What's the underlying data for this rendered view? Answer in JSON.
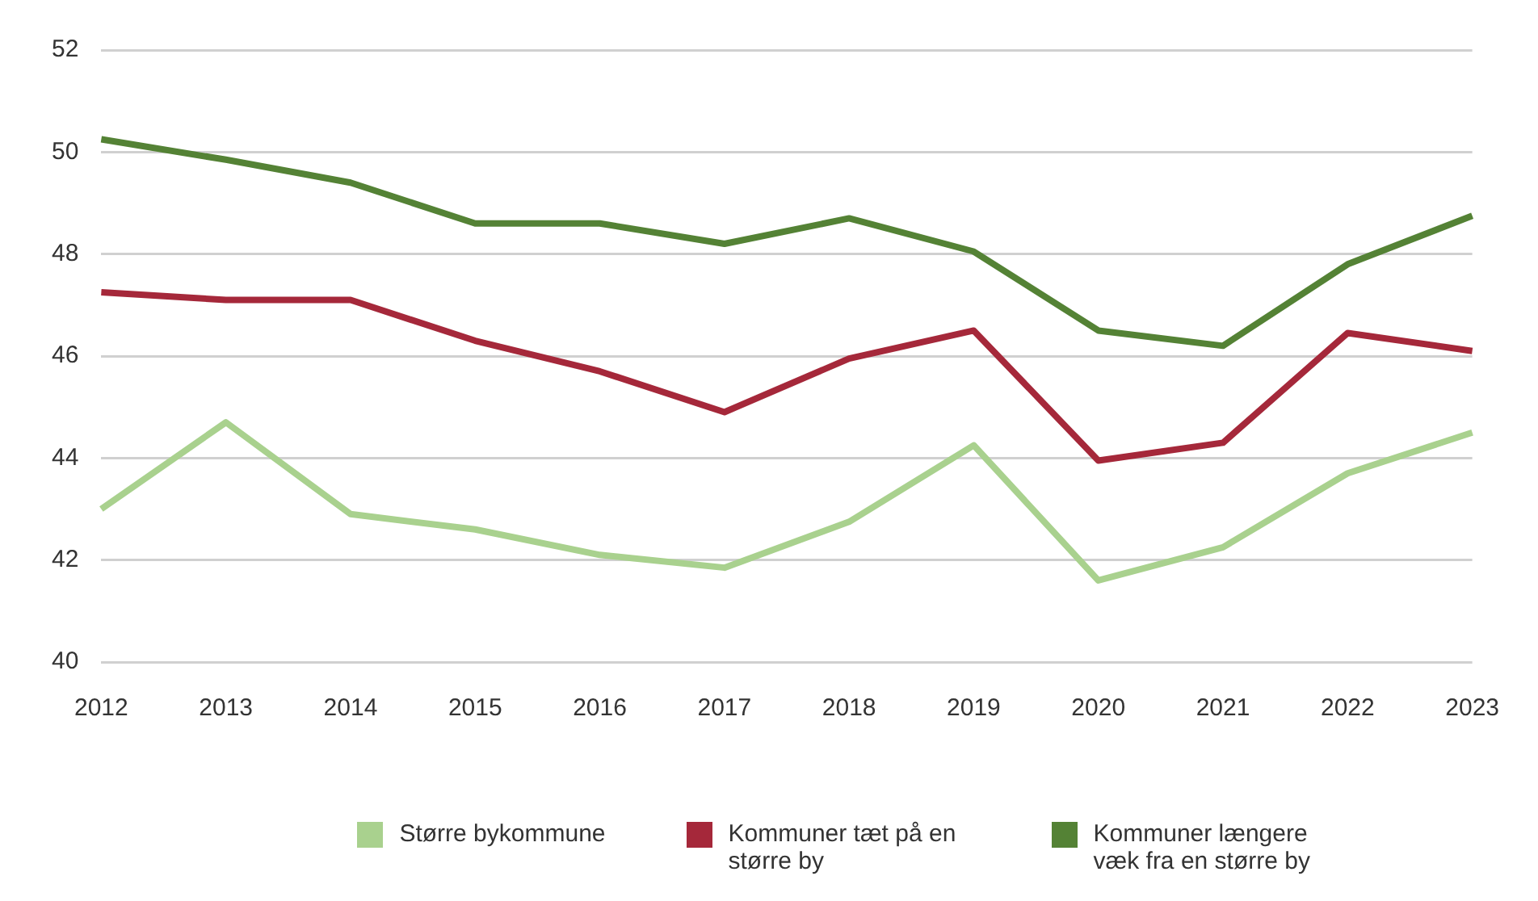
{
  "chart_data": {
    "type": "line",
    "categories": [
      "2012",
      "2013",
      "2014",
      "2015",
      "2016",
      "2017",
      "2018",
      "2019",
      "2020",
      "2021",
      "2022",
      "2023"
    ],
    "series": [
      {
        "name": "Større bykommune",
        "color": "#a9d18e",
        "values": [
          43.0,
          44.7,
          42.9,
          42.6,
          42.1,
          41.85,
          42.75,
          44.25,
          41.6,
          42.25,
          43.7,
          44.5
        ]
      },
      {
        "name": "Kommuner tæt på en større by",
        "color": "#a5283a",
        "values": [
          47.25,
          47.1,
          47.1,
          46.3,
          45.7,
          44.9,
          45.95,
          46.5,
          43.95,
          44.3,
          46.45,
          46.1
        ]
      },
      {
        "name": "Kommuner længere væk fra en større by",
        "color": "#548235",
        "values": [
          50.25,
          49.85,
          49.4,
          48.6,
          48.6,
          48.2,
          48.7,
          48.05,
          46.5,
          46.2,
          47.8,
          48.75
        ]
      }
    ],
    "ylim": [
      40,
      52
    ],
    "yticks": [
      40,
      42,
      44,
      46,
      48,
      50,
      52
    ],
    "grid": "y",
    "legend": "bottom",
    "marker": "none",
    "line_style": "solid"
  }
}
